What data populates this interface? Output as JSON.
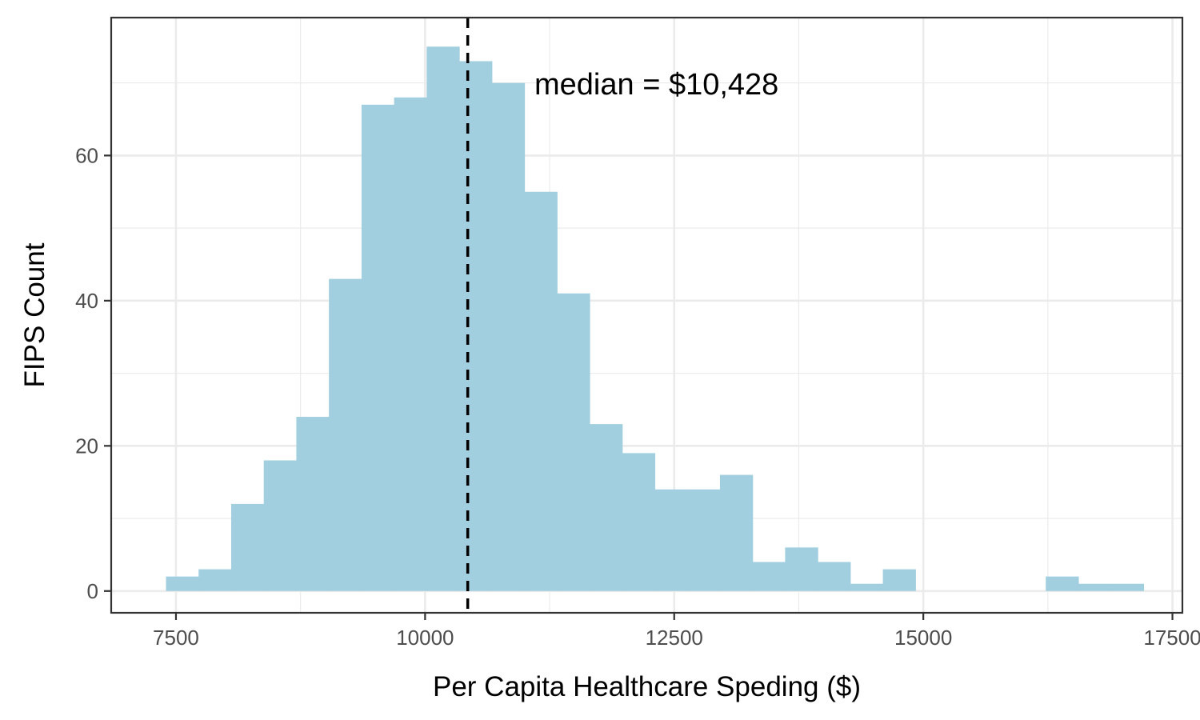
{
  "chart_data": {
    "type": "bar",
    "subtype": "histogram",
    "xlabel": "Per Capita Healthcare Speding ($)",
    "ylabel": "FIPS Count",
    "xlim": [
      6850,
      17600
    ],
    "ylim": [
      -3,
      79
    ],
    "x_ticks": [
      7500,
      10000,
      12500,
      15000,
      17500
    ],
    "x_tick_labels": [
      "7500",
      "10000",
      "12500",
      "15000",
      "17500"
    ],
    "x_minor_ticks": [
      8750,
      11250,
      13750,
      16250
    ],
    "y_ticks": [
      0,
      20,
      40,
      60
    ],
    "y_tick_labels": [
      "0",
      "20",
      "40",
      "60"
    ],
    "y_minor_ticks": [
      10,
      30,
      50,
      70
    ],
    "bin_start": 7400,
    "bin_width": 327,
    "bin_counts": [
      2,
      3,
      12,
      18,
      24,
      43,
      67,
      68,
      75,
      73,
      70,
      55,
      41,
      23,
      19,
      14,
      14,
      16,
      4,
      6,
      4,
      1,
      3,
      0,
      0,
      0,
      0,
      2,
      1,
      1
    ],
    "median": 10428,
    "annotation": "median = $10,428",
    "grid": true,
    "bar_color": "#a2cfe0",
    "median_line_color": "#000000",
    "panel_border_color": "#333333",
    "grid_color": "#ebebeb"
  }
}
